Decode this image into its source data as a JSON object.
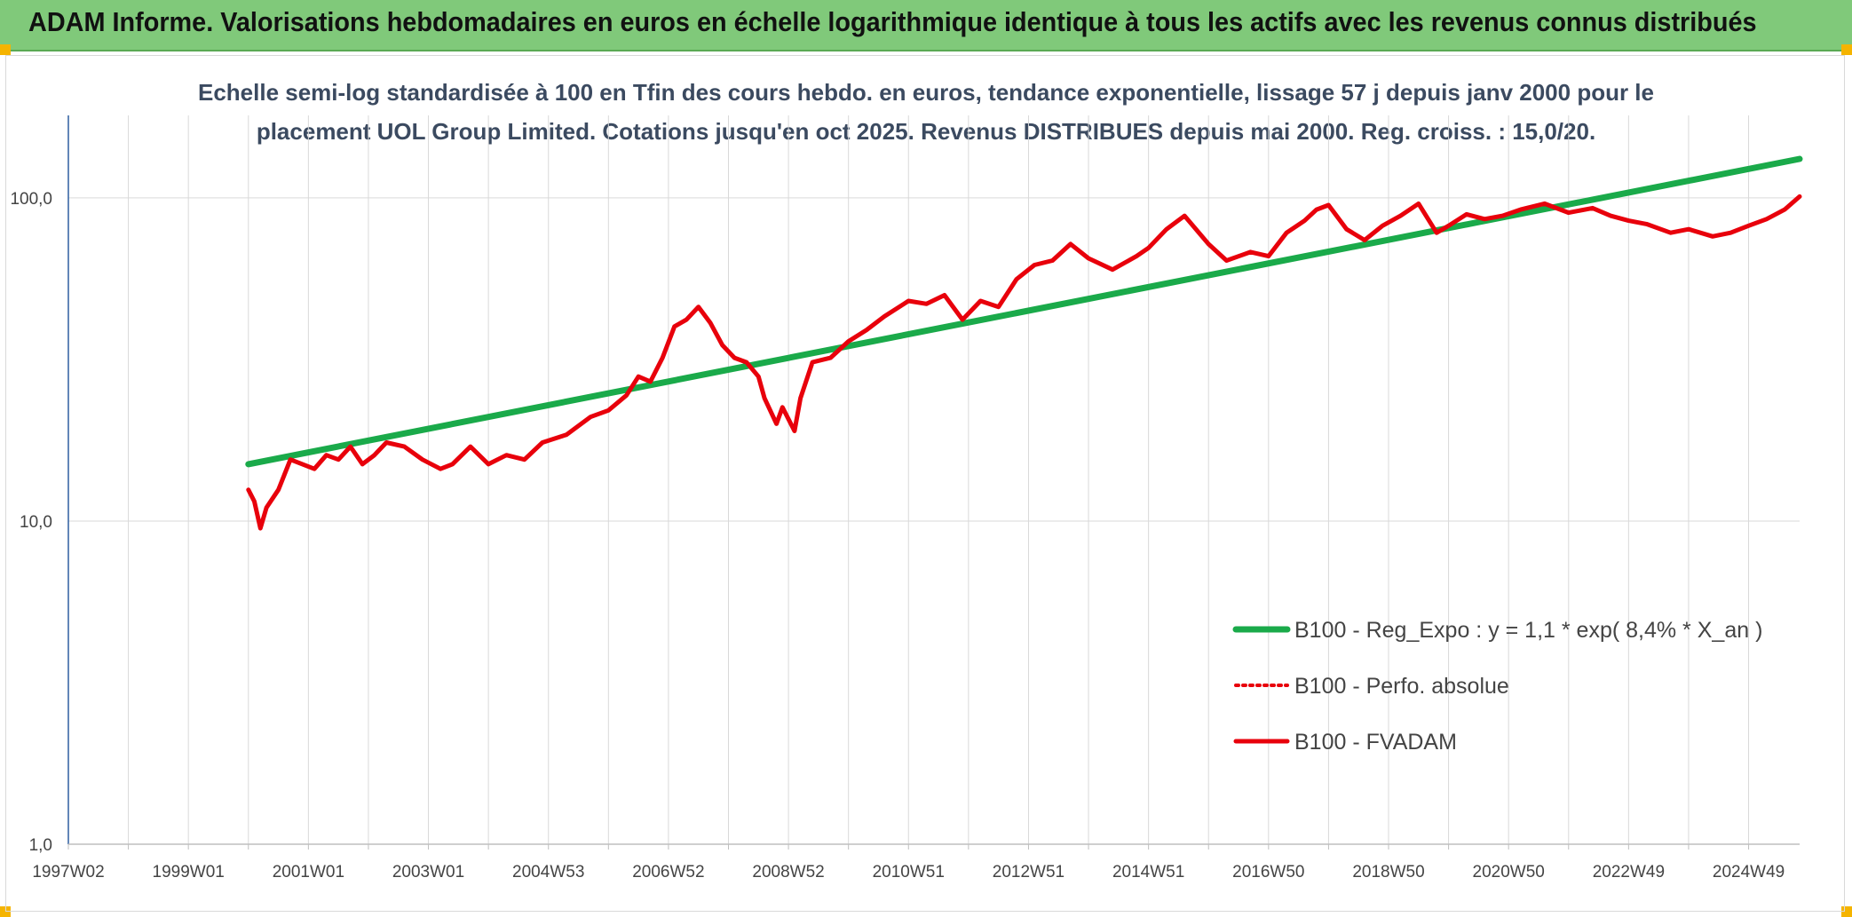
{
  "header": {
    "title": "ADAM Informe. Valorisations hebdomadaires en euros en échelle logarithmique identique à tous les actifs avec les revenus connus distribués"
  },
  "colors": {
    "header_bg": "#80c97a",
    "corner": "#f5b400",
    "regression": "#1aaa4a",
    "fvadam": "#e8000b",
    "grid": "#d9d9d9",
    "axis": "#2e5fa0"
  },
  "chart_data": {
    "type": "line",
    "subtitle_lines": [
      "Echelle semi-log standardisée à 100 en Tfin des cours hebdo. en euros, tendance exponentielle, lissage 57 j depuis janv 2000 pour le",
      "placement UOL Group Limited. Cotations jusqu'en oct 2025. Revenus DISTRIBUES depuis mai 2000. Reg. croiss. : 15,0/20."
    ],
    "y_scale": "log",
    "ylim": [
      1,
      180
    ],
    "xlim": [
      1997.0,
      2025.85
    ],
    "grid": true,
    "legend_position": "lower-right",
    "y_ticks": [
      {
        "value": 1,
        "label": "1,0"
      },
      {
        "value": 10,
        "label": "10,0"
      },
      {
        "value": 100,
        "label": "100,0"
      }
    ],
    "x_ticks": [
      {
        "value": 1997.0,
        "label": "1997W02"
      },
      {
        "value": 1999.0,
        "label": "1999W01"
      },
      {
        "value": 2001.0,
        "label": "2001W01"
      },
      {
        "value": 2003.0,
        "label": "2003W01"
      },
      {
        "value": 2005.0,
        "label": "2004W53"
      },
      {
        "value": 2007.0,
        "label": "2006W52"
      },
      {
        "value": 2009.0,
        "label": "2008W52"
      },
      {
        "value": 2011.0,
        "label": "2010W51"
      },
      {
        "value": 2013.0,
        "label": "2012W51"
      },
      {
        "value": 2015.0,
        "label": "2014W51"
      },
      {
        "value": 2017.0,
        "label": "2016W50"
      },
      {
        "value": 2019.0,
        "label": "2018W50"
      },
      {
        "value": 2021.0,
        "label": "2020W50"
      },
      {
        "value": 2023.0,
        "label": "2022W49"
      },
      {
        "value": 2025.0,
        "label": "2024W49"
      }
    ],
    "x_minor_ticks": [
      1998.0,
      2000.0,
      2002.0,
      2004.0,
      2006.0,
      2008.0,
      2010.0,
      2012.0,
      2014.0,
      2016.0,
      2018.0,
      2020.0,
      2022.0,
      2024.0
    ],
    "series": [
      {
        "name": "B100 - Reg_Expo : y = 1,1 * exp( 8,4% *  X_an )",
        "style": "solid-thick",
        "color": "#1aaa4a",
        "x": [
          2000.0,
          2025.85
        ],
        "y": [
          15.0,
          132.0
        ]
      },
      {
        "name": "B100 - Perfo. absolue",
        "style": "dotted",
        "color": "#e8000b",
        "x": [],
        "y": []
      },
      {
        "name": "B100 - FVADAM",
        "style": "solid",
        "color": "#e8000b",
        "x": [
          2000.0,
          2000.1,
          2000.2,
          2000.3,
          2000.5,
          2000.7,
          2000.9,
          2001.1,
          2001.3,
          2001.5,
          2001.7,
          2001.9,
          2002.1,
          2002.3,
          2002.6,
          2002.9,
          2003.2,
          2003.4,
          2003.7,
          2004.0,
          2004.3,
          2004.6,
          2004.9,
          2005.3,
          2005.7,
          2006.0,
          2006.3,
          2006.5,
          2006.7,
          2006.9,
          2007.1,
          2007.3,
          2007.5,
          2007.7,
          2007.9,
          2008.1,
          2008.3,
          2008.5,
          2008.6,
          2008.8,
          2008.9,
          2009.1,
          2009.2,
          2009.4,
          2009.7,
          2010.0,
          2010.3,
          2010.6,
          2011.0,
          2011.3,
          2011.6,
          2011.9,
          2012.2,
          2012.5,
          2012.8,
          2013.1,
          2013.4,
          2013.7,
          2014.0,
          2014.4,
          2014.8,
          2015.0,
          2015.3,
          2015.6,
          2016.0,
          2016.3,
          2016.7,
          2017.0,
          2017.3,
          2017.6,
          2017.8,
          2018.0,
          2018.3,
          2018.6,
          2018.9,
          2019.2,
          2019.5,
          2019.8,
          2020.0,
          2020.3,
          2020.6,
          2020.9,
          2021.2,
          2021.6,
          2022.0,
          2022.4,
          2022.7,
          2023.0,
          2023.3,
          2023.7,
          2024.0,
          2024.4,
          2024.7,
          2025.0,
          2025.3,
          2025.6,
          2025.85
        ],
        "y": [
          12.5,
          11.5,
          9.5,
          11.0,
          12.5,
          15.5,
          15.0,
          14.5,
          16.0,
          15.5,
          17.0,
          15.0,
          16.0,
          17.5,
          17.0,
          15.5,
          14.5,
          15.0,
          17.0,
          15.0,
          16.0,
          15.5,
          17.5,
          18.5,
          21.0,
          22.0,
          24.5,
          28.0,
          27.0,
          32.0,
          40.0,
          42.0,
          46.0,
          41.0,
          35.0,
          32.0,
          31.0,
          28.0,
          24.0,
          20.0,
          22.5,
          19.0,
          24.0,
          31.0,
          32.0,
          36.0,
          39.0,
          43.0,
          48.0,
          47.0,
          50.0,
          42.0,
          48.0,
          46.0,
          56.0,
          62.0,
          64.0,
          72.0,
          65.0,
          60.0,
          66.0,
          70.0,
          80.0,
          88.0,
          72.0,
          64.0,
          68.0,
          66.0,
          78.0,
          85.0,
          92.0,
          95.0,
          80.0,
          74.0,
          82.0,
          88.0,
          96.0,
          78.0,
          82.0,
          89.0,
          86.0,
          88.0,
          92.0,
          96.0,
          90.0,
          93.0,
          88.0,
          85.0,
          83.0,
          78.0,
          80.0,
          76.0,
          78.0,
          82.0,
          86.0,
          92.0,
          101.0
        ]
      }
    ]
  }
}
